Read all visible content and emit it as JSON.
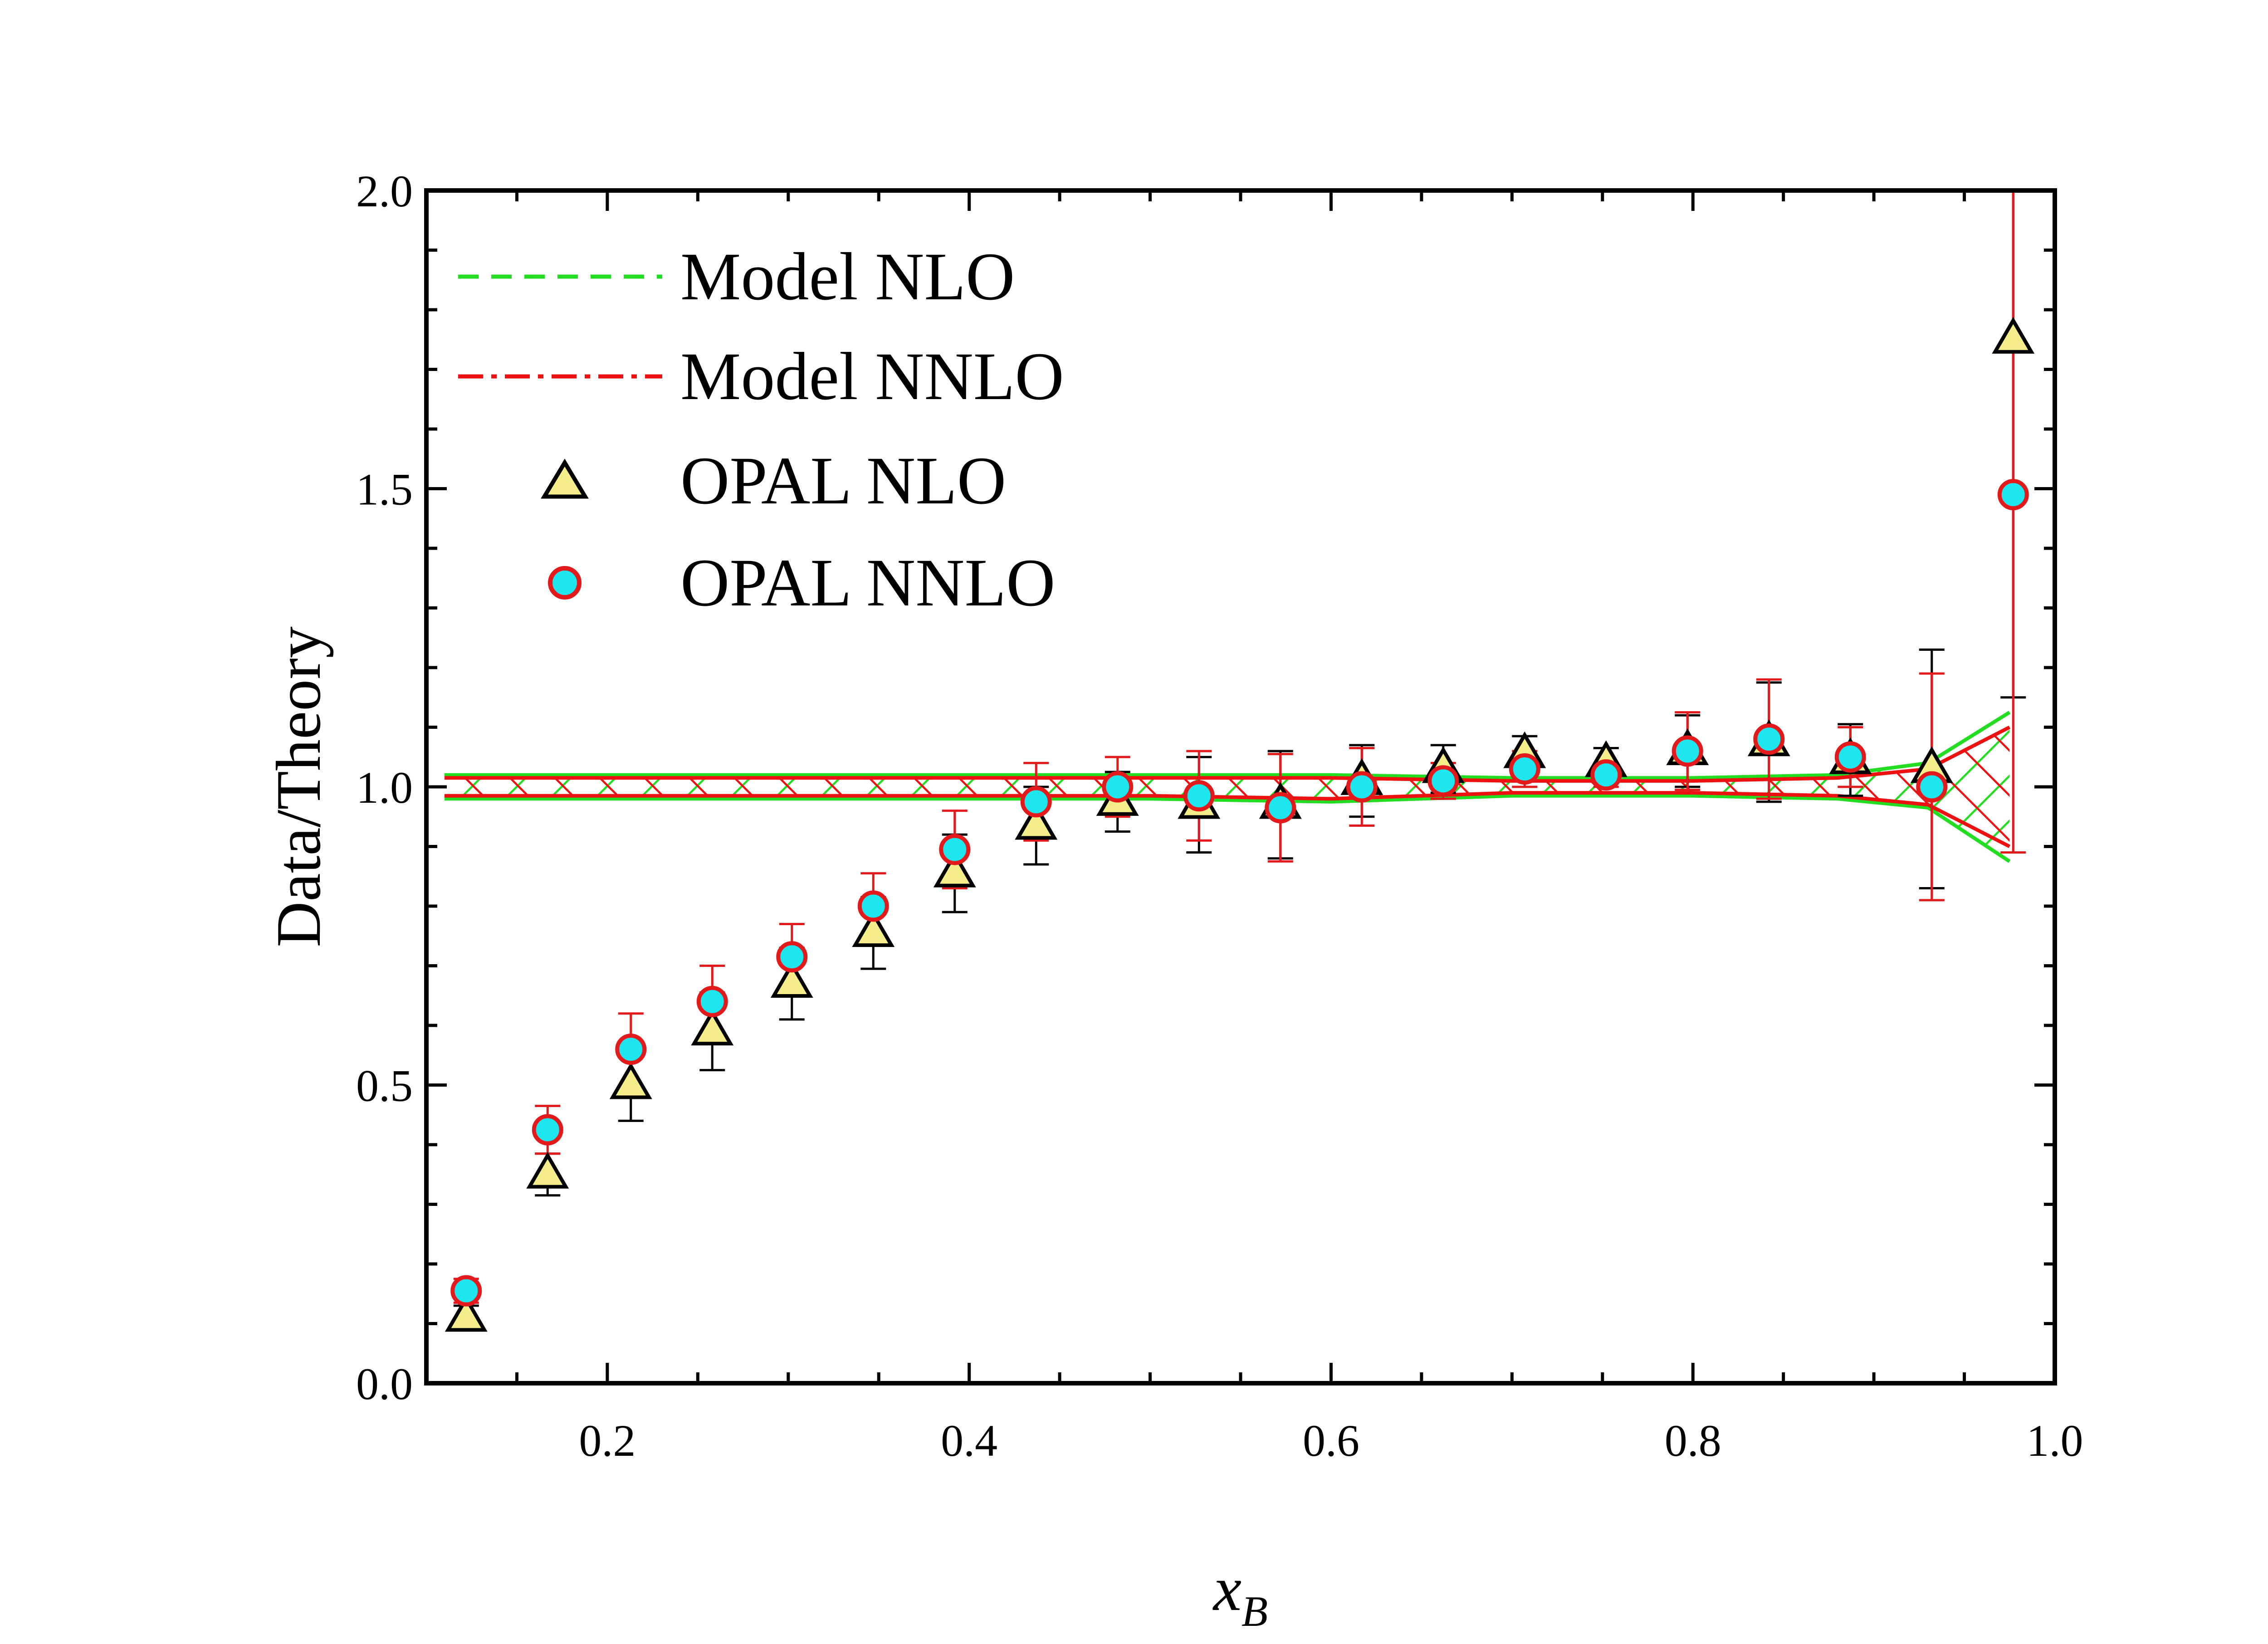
{
  "chart_data": {
    "type": "scatter",
    "title": "",
    "xlabel": "x",
    "xlabel_subscript": "B",
    "ylabel": "Data/Theory",
    "xlim": [
      0.1,
      1.0
    ],
    "ylim": [
      0.0,
      2.0
    ],
    "x_ticks": [
      "0.2",
      "0.4",
      "0.6",
      "0.8",
      "1.0"
    ],
    "y_ticks": [
      "0.0",
      "0.5",
      "1.0",
      "1.5",
      "2.0"
    ],
    "legend_position": "top-left",
    "colors": {
      "nlo_band": "#22dd22",
      "nnlo_band": "#ee1111",
      "triangle_fill": "#f5ec8a",
      "triangle_edge": "#000000",
      "circle_fill": "#1ee6ee",
      "circle_edge": "#e31a1c",
      "error_nlo": "#000000",
      "error_nnlo": "#e31a1c"
    },
    "bands": [
      {
        "name": "Model NLO",
        "x": [
          0.11,
          0.2,
          0.3,
          0.4,
          0.5,
          0.6,
          0.7,
          0.8,
          0.88,
          0.93,
          0.975
        ],
        "upper": [
          1.02,
          1.02,
          1.02,
          1.02,
          1.02,
          1.02,
          1.015,
          1.015,
          1.02,
          1.04,
          1.125
        ],
        "lower": [
          0.98,
          0.98,
          0.98,
          0.98,
          0.98,
          0.975,
          0.985,
          0.985,
          0.98,
          0.965,
          0.875
        ]
      },
      {
        "name": "Model NNLO",
        "x": [
          0.11,
          0.2,
          0.3,
          0.4,
          0.5,
          0.6,
          0.7,
          0.8,
          0.88,
          0.93,
          0.975
        ],
        "upper": [
          1.015,
          1.015,
          1.015,
          1.015,
          1.015,
          1.015,
          1.01,
          1.01,
          1.015,
          1.03,
          1.1
        ],
        "lower": [
          0.985,
          0.985,
          0.985,
          0.985,
          0.985,
          0.98,
          0.99,
          0.99,
          0.985,
          0.97,
          0.9
        ]
      }
    ],
    "series": [
      {
        "name": "OPAL NLO",
        "marker": "triangle",
        "x": [
          0.122,
          0.167,
          0.213,
          0.258,
          0.302,
          0.347,
          0.392,
          0.437,
          0.482,
          0.527,
          0.572,
          0.617,
          0.662,
          0.707,
          0.752,
          0.797,
          0.842,
          0.887,
          0.932,
          0.977
        ],
        "y": [
          0.11,
          0.35,
          0.5,
          0.59,
          0.67,
          0.755,
          0.855,
          0.935,
          0.975,
          0.97,
          0.97,
          1.01,
          1.03,
          1.055,
          1.04,
          1.06,
          1.075,
          1.045,
          1.03,
          1.75
        ],
        "err": [
          0.02,
          0.035,
          0.06,
          0.065,
          0.06,
          0.06,
          0.065,
          0.065,
          0.05,
          0.08,
          0.09,
          0.06,
          0.04,
          0.03,
          0.025,
          0.06,
          0.1,
          0.06,
          0.2,
          0.6
        ]
      },
      {
        "name": "OPAL NNLO",
        "marker": "circle",
        "x": [
          0.122,
          0.167,
          0.213,
          0.258,
          0.302,
          0.347,
          0.392,
          0.437,
          0.482,
          0.527,
          0.572,
          0.617,
          0.662,
          0.707,
          0.752,
          0.797,
          0.842,
          0.887,
          0.932,
          0.977
        ],
        "y": [
          0.155,
          0.425,
          0.56,
          0.64,
          0.715,
          0.8,
          0.895,
          0.975,
          1.0,
          0.985,
          0.965,
          1.0,
          1.01,
          1.03,
          1.02,
          1.06,
          1.08,
          1.05,
          1.0,
          1.49
        ],
        "err": [
          0.02,
          0.04,
          0.06,
          0.06,
          0.055,
          0.055,
          0.065,
          0.065,
          0.05,
          0.075,
          0.09,
          0.065,
          0.03,
          0.03,
          0.02,
          0.065,
          0.1,
          0.05,
          0.19,
          0.6
        ]
      }
    ]
  }
}
